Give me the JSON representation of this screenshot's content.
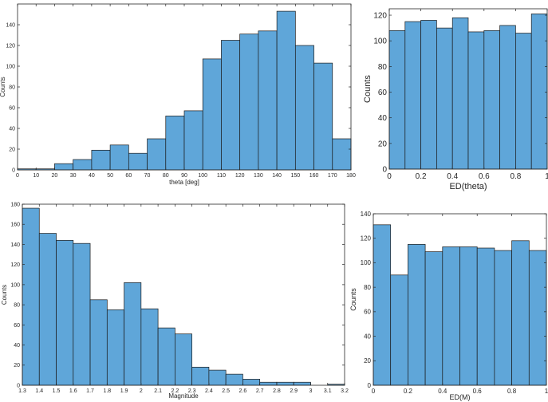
{
  "chart_data": [
    {
      "type": "bar",
      "xlabel": "theta [deg]",
      "ylabel": "Counts",
      "xlim": [
        0,
        180
      ],
      "ylim": [
        0,
        160
      ],
      "xticks": [
        0,
        10,
        20,
        30,
        40,
        50,
        60,
        70,
        80,
        90,
        100,
        110,
        120,
        130,
        140,
        150,
        160,
        170,
        180
      ],
      "yticks": [
        0,
        20,
        40,
        60,
        80,
        100,
        120,
        140
      ],
      "bin_edges": [
        0,
        10,
        20,
        30,
        40,
        50,
        60,
        70,
        80,
        90,
        100,
        110,
        120,
        130,
        140,
        150,
        160,
        170,
        180
      ],
      "values": [
        1,
        1,
        6,
        10,
        19,
        24,
        16,
        30,
        52,
        57,
        107,
        125,
        131,
        134,
        153,
        120,
        103,
        30
      ]
    },
    {
      "type": "bar",
      "xlabel": "ED(theta)",
      "ylabel": "Counts",
      "xlim": [
        0,
        1
      ],
      "ylim": [
        0,
        125
      ],
      "xticks": [
        "0",
        "0.2",
        "0.4",
        "0.6",
        "0.8",
        "1"
      ],
      "yticks": [
        0,
        20,
        40,
        60,
        80,
        100,
        120
      ],
      "bin_edges": [
        0,
        0.1,
        0.2,
        0.3,
        0.4,
        0.5,
        0.6,
        0.7,
        0.8,
        0.9,
        1
      ],
      "values": [
        108,
        115,
        116,
        110,
        118,
        107,
        108,
        112,
        106,
        121
      ]
    },
    {
      "type": "bar",
      "xlabel": "Magnitude",
      "ylabel": "Counts",
      "xlim": [
        1.3,
        3.2
      ],
      "ylim": [
        0,
        180
      ],
      "xticks": [
        "1.3",
        "1.4",
        "1.5",
        "1.6",
        "1.7",
        "1.8",
        "1.9",
        "2",
        "2.1",
        "2.2",
        "2.3",
        "2.4",
        "2.5",
        "2.6",
        "2.7",
        "2.8",
        "2.9",
        "3",
        "3.1",
        "3.2"
      ],
      "yticks": [
        0,
        20,
        40,
        60,
        80,
        100,
        120,
        140,
        160,
        180
      ],
      "bin_edges": [
        1.3,
        1.4,
        1.5,
        1.6,
        1.7,
        1.8,
        1.9,
        2.0,
        2.1,
        2.2,
        2.3,
        2.4,
        2.5,
        2.6,
        2.7,
        2.8,
        2.9,
        3.0,
        3.1,
        3.2
      ],
      "values": [
        176,
        151,
        144,
        141,
        85,
        75,
        102,
        76,
        57,
        51,
        18,
        15,
        11,
        6,
        3,
        3,
        3,
        0,
        1
      ]
    },
    {
      "type": "bar",
      "xlabel": "ED(M)",
      "ylabel": "Counts",
      "xlim": [
        0,
        1
      ],
      "ylim": [
        0,
        140
      ],
      "xticks": [
        "0",
        "0.2",
        "0.4",
        "0.6",
        "0.8",
        "1"
      ],
      "yticks": [
        0,
        20,
        40,
        60,
        80,
        100,
        120,
        140
      ],
      "bin_edges": [
        0,
        0.1,
        0.2,
        0.3,
        0.4,
        0.5,
        0.6,
        0.7,
        0.8,
        0.9,
        1
      ],
      "values": [
        131,
        90,
        115,
        109,
        113,
        113,
        112,
        110,
        118,
        110
      ]
    }
  ]
}
